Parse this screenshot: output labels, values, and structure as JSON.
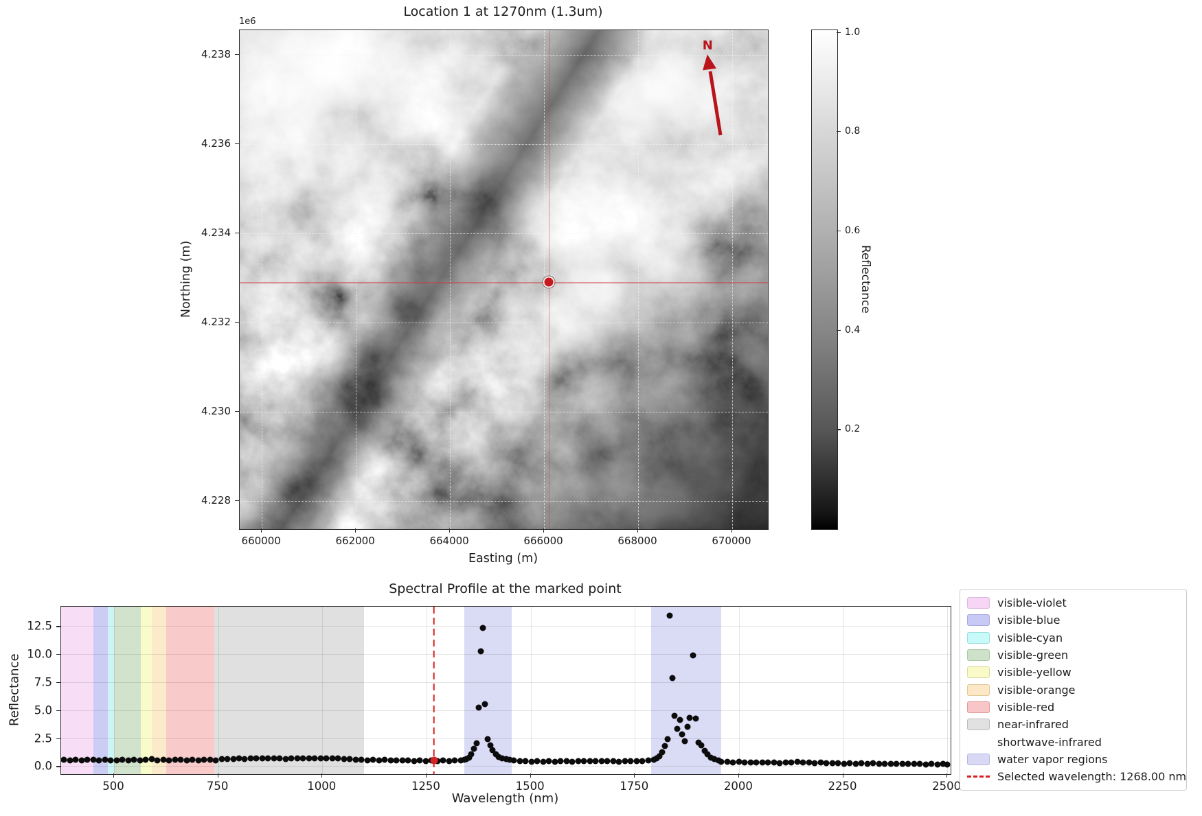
{
  "chart_data": [
    {
      "type": "heatmap",
      "title": "Location 1 at 1270nm (1.3um)",
      "xlabel": "Easting (m)",
      "ylabel": "Northing (m)",
      "axis_offset_label": "1e6",
      "xlim": [
        659530,
        670760
      ],
      "ylim_top": 4238550,
      "ylim_bottom": 4227365,
      "xticks": [
        660000,
        662000,
        664000,
        666000,
        668000,
        670000
      ],
      "xtick_labels": [
        "660000",
        "662000",
        "664000",
        "666000",
        "668000",
        "670000"
      ],
      "yticks": [
        4238000,
        4236000,
        4234000,
        4232000,
        4230000,
        4228000
      ],
      "ytick_labels": [
        "4.238",
        "4.236",
        "4.234",
        "4.232",
        "4.230",
        "4.228"
      ],
      "grid": "dashed",
      "marked_point": {
        "easting": 666100,
        "northing": 4232900
      },
      "north_arrow_label": "N",
      "accent_red": "#c6181e",
      "colorbar": {
        "label": "Reflectance",
        "min": 0,
        "max": 1.005,
        "ticks": [
          1.0,
          0.8,
          0.6,
          0.4,
          0.2
        ],
        "tick_labels": [
          "1.0",
          "0.8",
          "0.6",
          "0.4",
          "0.2"
        ],
        "cmap": "grayscale black-to-white"
      }
    },
    {
      "type": "scatter",
      "title": "Spectral Profile at the marked point",
      "xlabel": "Wavelength (nm)",
      "ylabel": "Reflectance",
      "xlim": [
        373,
        2508
      ],
      "ylim": [
        -0.65,
        14.3
      ],
      "xticks": [
        500,
        750,
        1000,
        1250,
        1500,
        1750,
        2000,
        2250,
        2500
      ],
      "xtick_labels": [
        "500",
        "750",
        "1000",
        "1250",
        "1500",
        "1750",
        "2000",
        "2250",
        "2500"
      ],
      "yticks": [
        0.0,
        2.5,
        5.0,
        7.5,
        10.0,
        12.5
      ],
      "ytick_labels": [
        "0.0",
        "2.5",
        "5.0",
        "7.5",
        "10.0",
        "12.5"
      ],
      "grid": "solid",
      "point_color": "#0c0c0c",
      "bands": [
        {
          "name": "visible-violet",
          "from": 373,
          "to": 450,
          "color": "#f7def6"
        },
        {
          "name": "visible-blue",
          "from": 450,
          "to": 485,
          "color": "#cbcdf4"
        },
        {
          "name": "visible-cyan",
          "from": 485,
          "to": 500,
          "color": "#cdf5f5"
        },
        {
          "name": "visible-green",
          "from": 500,
          "to": 565,
          "color": "#d2e3cd"
        },
        {
          "name": "visible-yellow",
          "from": 565,
          "to": 590,
          "color": "#fafbca"
        },
        {
          "name": "visible-orange",
          "from": 590,
          "to": 625,
          "color": "#fcebcb"
        },
        {
          "name": "visible-red",
          "from": 625,
          "to": 740,
          "color": "#f8caca"
        },
        {
          "name": "near-infrared",
          "from": 740,
          "to": 1100,
          "color": "#e0e0e0"
        },
        {
          "name": "shortwave-infrared",
          "from": 1100,
          "to": 2508,
          "color": "#ffffff"
        },
        {
          "name": "water-vapor-region-1",
          "from": 1340,
          "to": 1455,
          "color": "#dadbf4"
        },
        {
          "name": "water-vapor-region-2",
          "from": 1790,
          "to": 1958,
          "color": "#dadbf4"
        }
      ],
      "selected": {
        "wavelength": 1268,
        "label": "Selected wavelength: 1268.00 nm",
        "line_color": "#d81f1f",
        "point": [
          1268,
          0.55
        ]
      },
      "legend": [
        {
          "label": "visible-violet",
          "type": "patch",
          "swatch": "#f6d6f4",
          "edge": "#ddb8dd"
        },
        {
          "label": "visible-blue",
          "type": "patch",
          "swatch": "#c9c9f5",
          "edge": "#a9a9e0"
        },
        {
          "label": "visible-cyan",
          "type": "patch",
          "swatch": "#c9fafa",
          "edge": "#9adede"
        },
        {
          "label": "visible-green",
          "type": "patch",
          "swatch": "#cde2c9",
          "edge": "#a9c8a5"
        },
        {
          "label": "visible-yellow",
          "type": "patch",
          "swatch": "#fafac9",
          "edge": "#dcdc9a"
        },
        {
          "label": "visible-orange",
          "type": "patch",
          "swatch": "#fce8c6",
          "edge": "#e3c795"
        },
        {
          "label": "visible-red",
          "type": "patch",
          "swatch": "#f8c6c6",
          "edge": "#e09999"
        },
        {
          "label": "near-infrared",
          "type": "patch",
          "swatch": "#e1e1e1",
          "edge": "#bdbdbd"
        },
        {
          "label": "shortwave-infrared",
          "type": "patch",
          "swatch": "#ffffff",
          "edge": "#ffffff"
        },
        {
          "label": "water vapor regions",
          "type": "patch",
          "swatch": "#d9d9f5",
          "edge": "#b6b6e0"
        },
        {
          "label": "Selected wavelength: 1268.00 nm",
          "type": "dashed-line",
          "swatch": "#d81f1f",
          "edge": "#d81f1f"
        }
      ],
      "points": [
        [
          380,
          0.62
        ],
        [
          394,
          0.58
        ],
        [
          408,
          0.65
        ],
        [
          422,
          0.56
        ],
        [
          436,
          0.61
        ],
        [
          450,
          0.66
        ],
        [
          464,
          0.57
        ],
        [
          478,
          0.62
        ],
        [
          492,
          0.55
        ],
        [
          506,
          0.6
        ],
        [
          520,
          0.66
        ],
        [
          534,
          0.59
        ],
        [
          548,
          0.64
        ],
        [
          562,
          0.57
        ],
        [
          576,
          0.63
        ],
        [
          590,
          0.67
        ],
        [
          604,
          0.58
        ],
        [
          618,
          0.62
        ],
        [
          632,
          0.56
        ],
        [
          646,
          0.61
        ],
        [
          660,
          0.65
        ],
        [
          674,
          0.59
        ],
        [
          688,
          0.64
        ],
        [
          702,
          0.58
        ],
        [
          716,
          0.62
        ],
        [
          730,
          0.66
        ],
        [
          744,
          0.6
        ],
        [
          758,
          0.68
        ],
        [
          772,
          0.72
        ],
        [
          786,
          0.7
        ],
        [
          800,
          0.75
        ],
        [
          814,
          0.71
        ],
        [
          828,
          0.77
        ],
        [
          842,
          0.73
        ],
        [
          856,
          0.78
        ],
        [
          870,
          0.74
        ],
        [
          884,
          0.79
        ],
        [
          898,
          0.75
        ],
        [
          912,
          0.72
        ],
        [
          926,
          0.77
        ],
        [
          940,
          0.73
        ],
        [
          954,
          0.78
        ],
        [
          968,
          0.74
        ],
        [
          982,
          0.79
        ],
        [
          996,
          0.75
        ],
        [
          1010,
          0.78
        ],
        [
          1024,
          0.73
        ],
        [
          1038,
          0.76
        ],
        [
          1052,
          0.71
        ],
        [
          1066,
          0.68
        ],
        [
          1080,
          0.65
        ],
        [
          1094,
          0.62
        ],
        [
          1108,
          0.6
        ],
        [
          1122,
          0.63
        ],
        [
          1136,
          0.58
        ],
        [
          1150,
          0.61
        ],
        [
          1164,
          0.57
        ],
        [
          1178,
          0.6
        ],
        [
          1192,
          0.55
        ],
        [
          1206,
          0.58
        ],
        [
          1220,
          0.54
        ],
        [
          1234,
          0.57
        ],
        [
          1248,
          0.53
        ],
        [
          1262,
          0.56
        ],
        [
          1276,
          0.54
        ],
        [
          1290,
          0.57
        ],
        [
          1304,
          0.52
        ],
        [
          1318,
          0.55
        ],
        [
          1332,
          0.58
        ],
        [
          1340,
          0.62
        ],
        [
          1346,
          0.7
        ],
        [
          1352,
          0.85
        ],
        [
          1358,
          1.1
        ],
        [
          1364,
          1.6
        ],
        [
          1370,
          2.1
        ],
        [
          1376,
          5.3
        ],
        [
          1381,
          10.3
        ],
        [
          1386,
          12.4
        ],
        [
          1391,
          5.6
        ],
        [
          1397,
          2.45
        ],
        [
          1403,
          1.9
        ],
        [
          1409,
          1.5
        ],
        [
          1416,
          1.1
        ],
        [
          1424,
          0.9
        ],
        [
          1432,
          0.78
        ],
        [
          1441,
          0.68
        ],
        [
          1450,
          0.62
        ],
        [
          1460,
          0.55
        ],
        [
          1474,
          0.5
        ],
        [
          1488,
          0.53
        ],
        [
          1502,
          0.48
        ],
        [
          1516,
          0.52
        ],
        [
          1530,
          0.47
        ],
        [
          1544,
          0.51
        ],
        [
          1558,
          0.46
        ],
        [
          1572,
          0.5
        ],
        [
          1586,
          0.53
        ],
        [
          1600,
          0.48
        ],
        [
          1614,
          0.52
        ],
        [
          1628,
          0.49
        ],
        [
          1642,
          0.53
        ],
        [
          1656,
          0.5
        ],
        [
          1670,
          0.54
        ],
        [
          1684,
          0.49
        ],
        [
          1698,
          0.52
        ],
        [
          1712,
          0.48
        ],
        [
          1726,
          0.53
        ],
        [
          1740,
          0.5
        ],
        [
          1754,
          0.54
        ],
        [
          1768,
          0.51
        ],
        [
          1782,
          0.55
        ],
        [
          1795,
          0.62
        ],
        [
          1802,
          0.75
        ],
        [
          1809,
          0.95
        ],
        [
          1816,
          1.3
        ],
        [
          1822,
          1.85
        ],
        [
          1828,
          2.5
        ],
        [
          1834,
          13.5
        ],
        [
          1840,
          7.9
        ],
        [
          1846,
          4.55
        ],
        [
          1852,
          3.4
        ],
        [
          1858,
          4.2
        ],
        [
          1864,
          2.9
        ],
        [
          1870,
          2.3
        ],
        [
          1876,
          3.6
        ],
        [
          1882,
          4.4
        ],
        [
          1889,
          9.95
        ],
        [
          1896,
          4.3
        ],
        [
          1903,
          2.2
        ],
        [
          1910,
          1.9
        ],
        [
          1917,
          1.45
        ],
        [
          1924,
          1.1
        ],
        [
          1932,
          0.85
        ],
        [
          1941,
          0.7
        ],
        [
          1950,
          0.6
        ],
        [
          1958,
          0.48
        ],
        [
          1972,
          0.44
        ],
        [
          1986,
          0.4
        ],
        [
          2000,
          0.43
        ],
        [
          2014,
          0.39
        ],
        [
          2028,
          0.42
        ],
        [
          2042,
          0.38
        ],
        [
          2056,
          0.41
        ],
        [
          2070,
          0.37
        ],
        [
          2084,
          0.4
        ],
        [
          2098,
          0.36
        ],
        [
          2112,
          0.39
        ],
        [
          2126,
          0.42
        ],
        [
          2140,
          0.45
        ],
        [
          2154,
          0.41
        ],
        [
          2168,
          0.38
        ],
        [
          2182,
          0.35
        ],
        [
          2196,
          0.38
        ],
        [
          2210,
          0.34
        ],
        [
          2224,
          0.31
        ],
        [
          2238,
          0.34
        ],
        [
          2252,
          0.3
        ],
        [
          2266,
          0.33
        ],
        [
          2280,
          0.29
        ],
        [
          2294,
          0.32
        ],
        [
          2308,
          0.28
        ],
        [
          2322,
          0.31
        ],
        [
          2336,
          0.27
        ],
        [
          2350,
          0.3
        ],
        [
          2364,
          0.26
        ],
        [
          2378,
          0.29
        ],
        [
          2392,
          0.25
        ],
        [
          2406,
          0.28
        ],
        [
          2420,
          0.24
        ],
        [
          2434,
          0.27
        ],
        [
          2448,
          0.23
        ],
        [
          2462,
          0.26
        ],
        [
          2476,
          0.22
        ],
        [
          2490,
          0.25
        ],
        [
          2500,
          0.23
        ]
      ]
    }
  ]
}
